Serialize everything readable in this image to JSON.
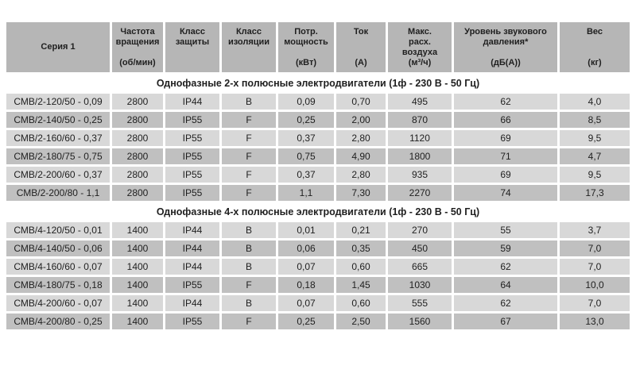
{
  "table": {
    "colors": {
      "header_bg": "#b6b6b6",
      "row_light": "#d8d8d8",
      "row_dark": "#c0c0c0",
      "text": "#1f1f1f",
      "background": "#ffffff"
    },
    "columns": [
      {
        "label": "Серия 1",
        "unit": ""
      },
      {
        "label": "Частота\nвращения",
        "unit": "(об/мин)"
      },
      {
        "label": "Класс\nзащиты",
        "unit": ""
      },
      {
        "label": "Класс\nизоляции",
        "unit": ""
      },
      {
        "label": "Потр.\nмощность",
        "unit": "(кВт)"
      },
      {
        "label": "Ток",
        "unit": "(А)"
      },
      {
        "label": "Макс.\nрасх.\nвоздуха",
        "unit": "(м³/ч)"
      },
      {
        "label": "Уровень звукового\nдавления*",
        "unit": "(дБ(А))"
      },
      {
        "label": "Вес",
        "unit": "(кг)"
      }
    ],
    "sections": [
      {
        "title": "Однофазные 2-х полюсные электродвигатели (1ф - 230 В - 50 Гц)",
        "rows": [
          [
            "СМВ/2-120/50 - 0,09",
            "2800",
            "IP44",
            "B",
            "0,09",
            "0,70",
            "495",
            "62",
            "4,0"
          ],
          [
            "СМВ/2-140/50 - 0,25",
            "2800",
            "IP55",
            "F",
            "0,25",
            "2,00",
            "870",
            "66",
            "8,5"
          ],
          [
            "СМВ/2-160/60 - 0,37",
            "2800",
            "IP55",
            "F",
            "0,37",
            "2,80",
            "1120",
            "69",
            "9,5"
          ],
          [
            "СМВ/2-180/75 - 0,75",
            "2800",
            "IP55",
            "F",
            "0,75",
            "4,90",
            "1800",
            "71",
            "4,7"
          ],
          [
            "СМВ/2-200/60 - 0,37",
            "2800",
            "IP55",
            "F",
            "0,37",
            "2,80",
            "935",
            "69",
            "9,5"
          ],
          [
            "СМВ/2-200/80 - 1,1",
            "2800",
            "IP55",
            "F",
            "1,1",
            "7,30",
            "2270",
            "74",
            "17,3"
          ]
        ]
      },
      {
        "title": "Однофазные 4-х полюсные электродвигатели (1ф - 230 В - 50 Гц)",
        "rows": [
          [
            "СМВ/4-120/50 - 0,01",
            "1400",
            "IP44",
            "B",
            "0,01",
            "0,21",
            "270",
            "55",
            "3,7"
          ],
          [
            "СМВ/4-140/50 - 0,06",
            "1400",
            "IP44",
            "B",
            "0,06",
            "0,35",
            "450",
            "59",
            "7,0"
          ],
          [
            "СМВ/4-160/60 - 0,07",
            "1400",
            "IP44",
            "B",
            "0,07",
            "0,60",
            "665",
            "62",
            "7,0"
          ],
          [
            "СМВ/4-180/75 - 0,18",
            "1400",
            "IP55",
            "F",
            "0,18",
            "1,45",
            "1030",
            "64",
            "10,0"
          ],
          [
            "СМВ/4-200/60 - 0,07",
            "1400",
            "IP44",
            "B",
            "0,07",
            "0,60",
            "555",
            "62",
            "7,0"
          ],
          [
            "СМВ/4-200/80 - 0,25",
            "1400",
            "IP55",
            "F",
            "0,25",
            "2,50",
            "1560",
            "67",
            "13,0"
          ]
        ]
      }
    ]
  }
}
